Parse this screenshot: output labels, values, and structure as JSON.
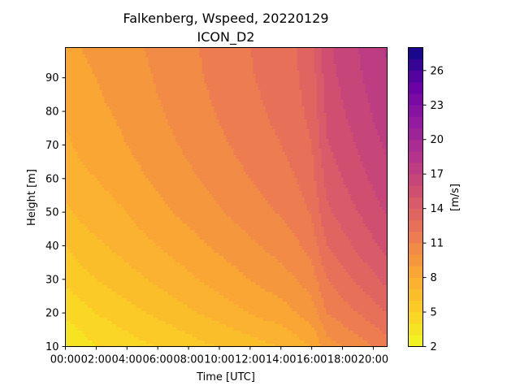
{
  "chart_data": {
    "type": "heatmap",
    "title": "Falkenberg, Wspeed, 20220129",
    "subtitle": "ICON_D2",
    "xlabel": "Time [UTC]",
    "ylabel": "Height [m]",
    "colorbar_label": "[m/s]",
    "colormap": "plasma_r",
    "xlim_hours": [
      0,
      20.9
    ],
    "ylim": [
      10,
      99
    ],
    "clim": [
      2,
      28
    ],
    "contour_levels_step": 1,
    "x_ticks": [
      {
        "value": 0,
        "label": "00:00"
      },
      {
        "value": 2,
        "label": "02:00"
      },
      {
        "value": 4,
        "label": "04:00"
      },
      {
        "value": 6,
        "label": "06:00"
      },
      {
        "value": 8,
        "label": "08:00"
      },
      {
        "value": 10,
        "label": "10:00"
      },
      {
        "value": 12,
        "label": "12:00"
      },
      {
        "value": 14,
        "label": "14:00"
      },
      {
        "value": 16,
        "label": "16:00"
      },
      {
        "value": 18,
        "label": "18:00"
      },
      {
        "value": 20,
        "label": "20:00"
      }
    ],
    "y_ticks": [
      {
        "value": 10,
        "label": "10"
      },
      {
        "value": 20,
        "label": "20"
      },
      {
        "value": 30,
        "label": "30"
      },
      {
        "value": 40,
        "label": "40"
      },
      {
        "value": 50,
        "label": "50"
      },
      {
        "value": 60,
        "label": "60"
      },
      {
        "value": 70,
        "label": "70"
      },
      {
        "value": 80,
        "label": "80"
      },
      {
        "value": 90,
        "label": "90"
      }
    ],
    "colorbar_ticks": [
      {
        "value": 2,
        "label": "2"
      },
      {
        "value": 5,
        "label": "5"
      },
      {
        "value": 8,
        "label": "8"
      },
      {
        "value": 11,
        "label": "11"
      },
      {
        "value": 14,
        "label": "14"
      },
      {
        "value": 17,
        "label": "17"
      },
      {
        "value": 20,
        "label": "20"
      },
      {
        "value": 23,
        "label": "23"
      },
      {
        "value": 26,
        "label": "26"
      }
    ],
    "heights_m": [
      10,
      20,
      30,
      40,
      50,
      60,
      70,
      80,
      90,
      99
    ],
    "series_by_time": [
      {
        "time_h": 0.0,
        "wspeed": [
          3.0,
          4.2,
          5.2,
          6.0,
          6.8,
          7.4,
          7.8,
          8.2,
          8.5,
          8.7
        ]
      },
      {
        "time_h": 1.0,
        "wspeed": [
          3.5,
          4.6,
          5.6,
          6.5,
          7.2,
          7.8,
          8.2,
          8.5,
          8.8,
          9.0
        ]
      },
      {
        "time_h": 2.0,
        "wspeed": [
          4.0,
          5.0,
          6.0,
          6.8,
          7.5,
          8.0,
          8.4,
          8.8,
          9.0,
          9.2
        ]
      },
      {
        "time_h": 3.0,
        "wspeed": [
          4.2,
          5.3,
          6.3,
          7.1,
          7.7,
          8.3,
          8.7,
          9.0,
          9.3,
          9.5
        ]
      },
      {
        "time_h": 4.0,
        "wspeed": [
          4.5,
          5.6,
          6.6,
          7.4,
          8.0,
          8.6,
          9.0,
          9.3,
          9.5,
          9.7
        ]
      },
      {
        "time_h": 5.0,
        "wspeed": [
          4.8,
          5.9,
          6.9,
          7.7,
          8.4,
          8.9,
          9.3,
          9.6,
          9.8,
          10.0
        ]
      },
      {
        "time_h": 6.0,
        "wspeed": [
          5.0,
          6.2,
          7.2,
          8.0,
          8.7,
          9.2,
          9.6,
          9.9,
          10.1,
          10.2
        ]
      },
      {
        "time_h": 7.0,
        "wspeed": [
          5.2,
          6.5,
          7.5,
          8.3,
          9.0,
          9.5,
          9.9,
          10.2,
          10.4,
          10.5
        ]
      },
      {
        "time_h": 8.0,
        "wspeed": [
          5.5,
          6.8,
          7.8,
          8.6,
          9.3,
          9.8,
          10.2,
          10.5,
          10.7,
          10.8
        ]
      },
      {
        "time_h": 9.0,
        "wspeed": [
          5.8,
          7.1,
          8.1,
          8.9,
          9.6,
          10.1,
          10.5,
          10.8,
          11.0,
          11.1
        ]
      },
      {
        "time_h": 10.0,
        "wspeed": [
          6.0,
          7.4,
          8.4,
          9.2,
          9.9,
          10.4,
          10.8,
          11.1,
          11.3,
          11.4
        ]
      },
      {
        "time_h": 11.0,
        "wspeed": [
          6.3,
          7.7,
          8.7,
          9.5,
          10.2,
          10.7,
          11.1,
          11.4,
          11.6,
          11.7
        ]
      },
      {
        "time_h": 12.0,
        "wspeed": [
          6.5,
          8.0,
          9.0,
          9.8,
          10.5,
          11.0,
          11.4,
          11.7,
          11.9,
          12.0
        ]
      },
      {
        "time_h": 13.0,
        "wspeed": [
          6.8,
          8.3,
          9.3,
          10.1,
          10.8,
          11.3,
          11.7,
          12.0,
          12.2,
          12.3
        ]
      },
      {
        "time_h": 14.0,
        "wspeed": [
          7.0,
          8.5,
          9.6,
          10.4,
          11.1,
          11.6,
          12.0,
          12.3,
          12.5,
          12.6
        ]
      },
      {
        "time_h": 15.0,
        "wspeed": [
          7.5,
          9.0,
          10.0,
          10.8,
          11.5,
          12.0,
          12.4,
          12.7,
          12.9,
          13.0
        ]
      },
      {
        "time_h": 16.0,
        "wspeed": [
          8.0,
          9.5,
          10.5,
          11.4,
          12.1,
          12.6,
          13.0,
          13.3,
          13.5,
          13.6
        ]
      },
      {
        "time_h": 17.0,
        "wspeed": [
          9.5,
          11.0,
          12.0,
          13.0,
          13.8,
          14.4,
          14.9,
          15.3,
          15.6,
          15.8
        ]
      },
      {
        "time_h": 18.0,
        "wspeed": [
          10.0,
          11.5,
          12.6,
          13.6,
          14.4,
          15.0,
          15.5,
          15.9,
          16.2,
          16.4
        ]
      },
      {
        "time_h": 19.0,
        "wspeed": [
          10.5,
          12.0,
          13.2,
          14.2,
          15.0,
          15.6,
          16.1,
          16.5,
          16.8,
          17.0
        ]
      },
      {
        "time_h": 20.0,
        "wspeed": [
          11.0,
          12.5,
          13.8,
          14.8,
          15.6,
          16.2,
          16.7,
          17.1,
          17.4,
          17.6
        ]
      },
      {
        "time_h": 20.9,
        "wspeed": [
          11.5,
          13.0,
          14.3,
          15.3,
          16.1,
          16.7,
          17.2,
          17.6,
          17.9,
          18.1
        ]
      }
    ]
  }
}
